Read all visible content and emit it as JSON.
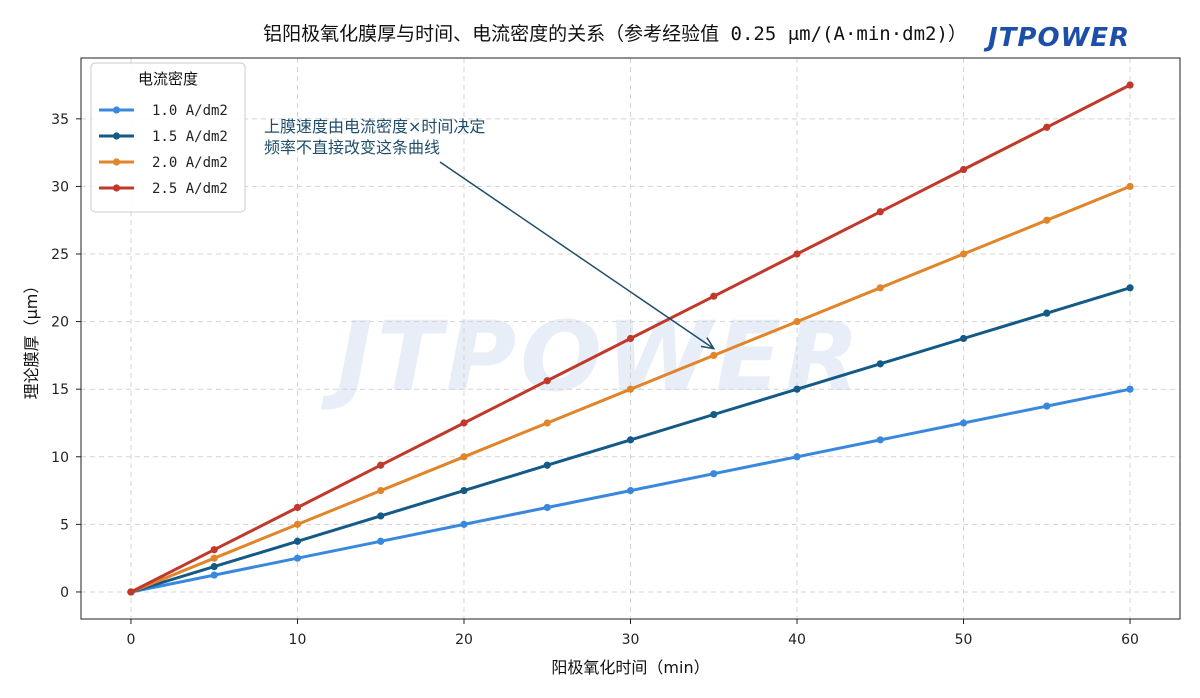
{
  "brand_logo": "JTPOWER",
  "chart_data": {
    "type": "line",
    "title": "铝阳极氧化膜厚与时间、电流密度的关系（参考经验值 0.25 μm/(A·min·dm2)）",
    "xlabel": "阳极氧化时间（min）",
    "ylabel": "理论膜厚（μm）",
    "xlim": [
      -3,
      63
    ],
    "ylim": [
      -2,
      39.5
    ],
    "xticks": [
      0,
      10,
      20,
      30,
      40,
      50,
      60
    ],
    "yticks": [
      0,
      5,
      10,
      15,
      20,
      25,
      30,
      35
    ],
    "grid": true,
    "legend": {
      "title": "电流密度",
      "position": "top-left"
    },
    "x": [
      0,
      5,
      10,
      15,
      20,
      25,
      30,
      35,
      40,
      45,
      50,
      55,
      60
    ],
    "series": [
      {
        "name": "1.0 A/dm2",
        "color": "#3a88dd",
        "values": [
          0,
          1.25,
          2.5,
          3.75,
          5,
          6.25,
          7.5,
          8.75,
          10,
          11.25,
          12.5,
          13.75,
          15
        ]
      },
      {
        "name": "1.5 A/dm2",
        "color": "#145a87",
        "values": [
          0,
          1.875,
          3.75,
          5.625,
          7.5,
          9.375,
          11.25,
          13.125,
          15,
          16.875,
          18.75,
          20.625,
          22.5
        ]
      },
      {
        "name": "2.0 A/dm2",
        "color": "#e0852a",
        "values": [
          0,
          2.5,
          5,
          7.5,
          10,
          12.5,
          15,
          17.5,
          20,
          22.5,
          25,
          27.5,
          30
        ]
      },
      {
        "name": "2.5 A/dm2",
        "color": "#c0392b",
        "values": [
          0,
          3.125,
          6.25,
          9.375,
          12.5,
          15.625,
          18.75,
          21.875,
          25,
          28.125,
          31.25,
          34.375,
          37.5
        ]
      }
    ],
    "annotation": {
      "lines": [
        "上膜速度由电流密度×时间决定",
        "频率不直接改变这条曲线"
      ],
      "arrow_to": {
        "x": 35,
        "y": 18
      },
      "color": "#1f4e6b"
    }
  }
}
